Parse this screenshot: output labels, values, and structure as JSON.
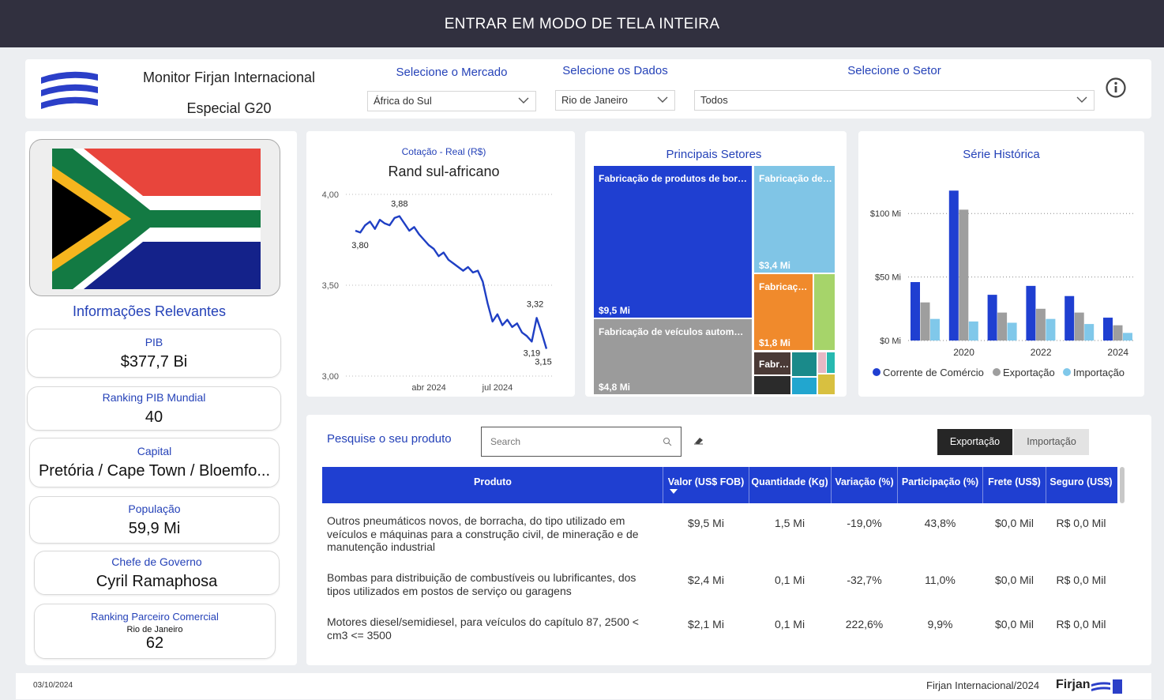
{
  "header_bar": {
    "title": "ENTRAR EM MODO DE TELA INTEIRA"
  },
  "header": {
    "title": "Monitor Firjan Internacional",
    "subtitle": "Especial G20",
    "filters": [
      {
        "label": "Selecione o Mercado",
        "value": "África do Sul"
      },
      {
        "label": "Selecione os Dados",
        "value": "Rio de Janeiro"
      },
      {
        "label": "Selecione o Setor",
        "value": "Todos"
      }
    ]
  },
  "info": {
    "title": "Informações Relevantes",
    "cards": [
      {
        "label": "PIB",
        "value": "$377,7 Bi"
      },
      {
        "label": "Ranking PIB Mundial",
        "value": 40
      },
      {
        "label": "Capital",
        "value": "Pretória / Cape Town / Bloemfo..."
      },
      {
        "label": "População",
        "value": "59,9 Mi"
      },
      {
        "label": "Chefe de Governo",
        "value": "Cyril Ramaphosa"
      },
      {
        "label": "Ranking Parceiro Comercial",
        "sublabel": "Rio de Janeiro",
        "value": 62
      }
    ]
  },
  "exchange_chart": {
    "type": "line",
    "subtitle": "Cotação - Real (R$)",
    "title": "Rand sul-africano",
    "color": "#1f3fc4",
    "categories": [
      null,
      null,
      null,
      null,
      null,
      null,
      null,
      null,
      null,
      null,
      null,
      null,
      null,
      null,
      null,
      "abr 2024",
      null,
      null,
      null,
      null,
      null,
      null,
      null,
      null,
      null,
      null,
      null,
      null,
      null,
      "jul 2024",
      null,
      null,
      null,
      null,
      null,
      null,
      null,
      null,
      null,
      null
    ],
    "values": [
      3.8,
      3.79,
      3.83,
      3.85,
      3.81,
      3.86,
      3.84,
      3.83,
      3.87,
      3.88,
      3.84,
      3.8,
      3.82,
      3.78,
      3.75,
      3.72,
      3.7,
      3.66,
      3.68,
      3.64,
      3.62,
      3.6,
      3.58,
      3.6,
      3.57,
      3.58,
      3.52,
      3.4,
      3.3,
      3.34,
      3.28,
      3.31,
      3.27,
      3.29,
      3.24,
      3.22,
      3.19,
      3.32,
      3.24,
      3.15
    ],
    "value_labels": [
      "3,80",
      null,
      null,
      null,
      null,
      null,
      null,
      null,
      null,
      "3,88",
      null,
      null,
      null,
      null,
      null,
      null,
      null,
      null,
      null,
      null,
      null,
      null,
      null,
      null,
      null,
      null,
      null,
      null,
      null,
      null,
      null,
      null,
      null,
      null,
      null,
      null,
      "3,19",
      "3,32",
      null,
      "3,15"
    ],
    "ylim": [
      3,
      4
    ],
    "yticks": [
      {
        "value": 3,
        "label": "3,00"
      },
      {
        "value": 3.5,
        "label": "3,50"
      },
      {
        "value": 4,
        "label": "4,00"
      }
    ],
    "grid": true
  },
  "sectors_chart": {
    "type": "treemap",
    "title": "Principais Setores",
    "categories": [
      "Fabricação de produtos de bor…",
      "Fabricação de veículos autom…",
      "Fabricação de…",
      "Fabricaç…",
      null,
      "Fabr…",
      null,
      null,
      null,
      null,
      null,
      null
    ],
    "values": [
      9.5,
      4.8,
      3.4,
      1.8,
      0.6,
      0.3,
      0.25,
      0.2,
      0.18,
      0.08,
      0.08,
      0.1
    ],
    "value_labels": [
      "$9,5 Mi",
      "$4,8 Mi",
      "$3,4 Mi",
      "$1,8 Mi",
      null,
      null,
      null,
      null,
      null,
      null,
      null,
      null
    ],
    "colors": [
      "#1f3fd1",
      "#9b9b9b",
      "#80c5e6",
      "#f08a2c",
      "#a6d46a",
      "#4a3a36",
      "#1a8a8a",
      "#2b2b2b",
      "#22a6cf",
      "#e6b8c4",
      "#27b9b0",
      "#d8c040"
    ]
  },
  "history_chart": {
    "type": "bar",
    "title": "Série Histórica",
    "categories": [
      null,
      "2020",
      null,
      "2022",
      null,
      "2024"
    ],
    "series": [
      {
        "name": "Corrente de Comércio",
        "color": "#1f3fd1",
        "values": [
          46,
          118,
          36,
          43,
          35,
          18
        ]
      },
      {
        "name": "Exportação",
        "color": "#9e9e9e",
        "values": [
          30,
          103,
          22,
          25,
          22,
          12
        ]
      },
      {
        "name": "Importação",
        "color": "#80c8ea",
        "values": [
          17,
          15,
          14,
          17,
          13,
          6
        ]
      }
    ],
    "ylim": [
      0,
      125
    ],
    "yticks": [
      {
        "value": 0,
        "label": "$0 Mi"
      },
      {
        "value": 50,
        "label": "$50 Mi"
      },
      {
        "value": 100,
        "label": "$100 Mi"
      }
    ],
    "grid": true,
    "legend": "bottom"
  },
  "table": {
    "search_label": "Pesquise o seu produto",
    "search_placeholder": "Search",
    "tabs": [
      "Exportação",
      "Importação"
    ],
    "columns": [
      "Produto",
      "Valor (US$ FOB)",
      "Quantidade (Kg)",
      "Variação (%)",
      "Participação (%)",
      "Frete (US$)",
      "Seguro (US$)"
    ],
    "rows": [
      [
        "Outros pneumáticos novos, de borracha, do tipo utilizado em veículos e máquinas para a construção civil, de mineração e de manutenção industrial",
        "$9,5 Mi",
        "1,5 Mi",
        "-19,0%",
        "43,8%",
        "$0,0 Mil",
        "R$ 0,0 Mil"
      ],
      [
        "Bombas para distribuição de combustíveis ou lubrificantes, dos tipos utilizados em postos de serviço ou garagens",
        "$2,4 Mi",
        "0,1 Mi",
        "-32,7%",
        "11,0%",
        "$0,0 Mil",
        "R$ 0,0 Mil"
      ],
      [
        "Motores diesel/semidiesel, para veículos do capítulo 87, 2500 < cm3 <= 3500",
        "$2,1 Mi",
        "0,1 Mi",
        "222,6%",
        "9,9%",
        "$0,0 Mil",
        "R$ 0,0 Mil"
      ]
    ]
  },
  "footer": {
    "date": "03/10/2024",
    "credit": "Firjan Internacional/2024",
    "brand": "Firjan"
  }
}
